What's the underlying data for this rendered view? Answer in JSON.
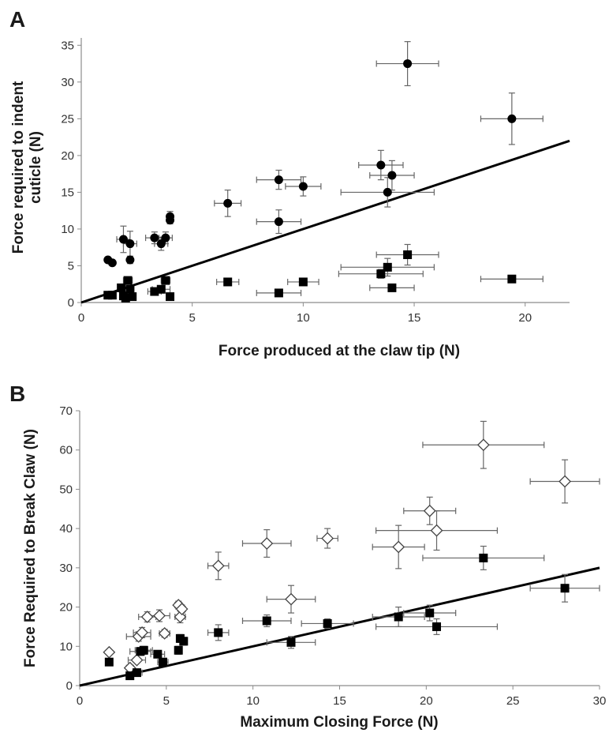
{
  "panels": [
    {
      "letter": "A",
      "xlabel": "Force produced at the claw tip (N)",
      "ylabel_lines": [
        "Force required to indent",
        "cuticle (N)"
      ],
      "xticks": [
        "0",
        "5",
        "10",
        "15",
        "20"
      ],
      "yticks": [
        "0",
        "5",
        "10",
        "15",
        "20",
        "25",
        "30",
        "35"
      ]
    },
    {
      "letter": "B",
      "xlabel": "Maximum Closing Force (N)",
      "ylabel_lines": [
        "Force Required to Break Claw (N)"
      ],
      "xticks": [
        "0",
        "5",
        "10",
        "15",
        "20",
        "25",
        "30"
      ],
      "yticks": [
        "0",
        "10",
        "20",
        "30",
        "40",
        "50",
        "60",
        "70"
      ]
    }
  ],
  "colors": {
    "marker": "#000000",
    "errorbar": "#666666",
    "axis": "#8c8c8c",
    "line": "#000000"
  },
  "chart_data": [
    {
      "type": "scatter",
      "xlabel": "Force produced at the claw tip (N)",
      "ylabel": "Force required to indent cuticle (N)",
      "xlim": [
        0,
        22
      ],
      "ylim": [
        0,
        36
      ],
      "grid": false,
      "series": [
        {
          "marker": "circle",
          "points": [
            {
              "x": 1.2,
              "y": 5.8,
              "xerr": 0.1,
              "yerr": 0.3
            },
            {
              "x": 1.4,
              "y": 5.4,
              "xerr": 0.1,
              "yerr": 0.3
            },
            {
              "x": 1.9,
              "y": 8.6,
              "xerr": 0.3,
              "yerr": 1.8
            },
            {
              "x": 2.2,
              "y": 8.0,
              "xerr": 0.3,
              "yerr": 1.7
            },
            {
              "x": 2.2,
              "y": 5.8,
              "xerr": 0.1,
              "yerr": 0.5
            },
            {
              "x": 3.3,
              "y": 8.8,
              "xerr": 0.4,
              "yerr": 0.8
            },
            {
              "x": 3.6,
              "y": 8.0,
              "xerr": 0.3,
              "yerr": 0.9
            },
            {
              "x": 3.8,
              "y": 8.8,
              "xerr": 0.3,
              "yerr": 0.8
            },
            {
              "x": 4.0,
              "y": 11.7,
              "xerr": 0.1,
              "yerr": 0.7
            },
            {
              "x": 4.0,
              "y": 11.2,
              "xerr": 0.1,
              "yerr": 0.5
            },
            {
              "x": 6.6,
              "y": 13.5,
              "xerr": 0.6,
              "yerr": 1.8
            },
            {
              "x": 8.9,
              "y": 16.7,
              "xerr": 1.0,
              "yerr": 1.3
            },
            {
              "x": 8.9,
              "y": 11.0,
              "xerr": 1.0,
              "yerr": 1.6
            },
            {
              "x": 10.0,
              "y": 15.8,
              "xerr": 0.8,
              "yerr": 1.3
            },
            {
              "x": 13.5,
              "y": 18.7,
              "xerr": 1.0,
              "yerr": 2.0
            },
            {
              "x": 13.8,
              "y": 15.0,
              "xerr": 2.1,
              "yerr": 2.0
            },
            {
              "x": 14.0,
              "y": 17.3,
              "xerr": 1.0,
              "yerr": 2.0
            },
            {
              "x": 14.7,
              "y": 32.5,
              "xerr": 1.4,
              "yerr": 3.0
            },
            {
              "x": 19.4,
              "y": 25.0,
              "xerr": 1.4,
              "yerr": 3.5
            }
          ]
        },
        {
          "marker": "square",
          "points": [
            {
              "x": 1.2,
              "y": 1.0,
              "xerr": 0.1,
              "yerr": 0.1
            },
            {
              "x": 1.4,
              "y": 1.0,
              "xerr": 0.1,
              "yerr": 0.1
            },
            {
              "x": 1.8,
              "y": 2.0,
              "xerr": 0.1,
              "yerr": 0.2
            },
            {
              "x": 1.9,
              "y": 0.9,
              "xerr": 0.1,
              "yerr": 0.2
            },
            {
              "x": 2.0,
              "y": 0.6,
              "xerr": 0.1,
              "yerr": 0.2
            },
            {
              "x": 2.1,
              "y": 3.0,
              "xerr": 0.2,
              "yerr": 0.4
            },
            {
              "x": 2.2,
              "y": 1.8,
              "xerr": 0.1,
              "yerr": 0.3
            },
            {
              "x": 2.3,
              "y": 0.8,
              "xerr": 0.1,
              "yerr": 0.2
            },
            {
              "x": 3.3,
              "y": 1.5,
              "xerr": 0.3,
              "yerr": 0.2
            },
            {
              "x": 3.6,
              "y": 1.8,
              "xerr": 0.4,
              "yerr": 0.2
            },
            {
              "x": 3.8,
              "y": 3.0,
              "xerr": 0.2,
              "yerr": 0.4
            },
            {
              "x": 4.0,
              "y": 0.8,
              "xerr": 0.1,
              "yerr": 0.2
            },
            {
              "x": 6.6,
              "y": 2.8,
              "xerr": 0.5,
              "yerr": 0.5
            },
            {
              "x": 8.9,
              "y": 1.3,
              "xerr": 1.0,
              "yerr": 0.3
            },
            {
              "x": 10.0,
              "y": 2.8,
              "xerr": 0.7,
              "yerr": 0.4
            },
            {
              "x": 13.5,
              "y": 3.9,
              "xerr": 1.9,
              "yerr": 0.6
            },
            {
              "x": 13.8,
              "y": 4.8,
              "xerr": 2.1,
              "yerr": 1.2
            },
            {
              "x": 14.0,
              "y": 2.0,
              "xerr": 1.0,
              "yerr": 0.3
            },
            {
              "x": 14.7,
              "y": 6.5,
              "xerr": 1.4,
              "yerr": 1.4
            },
            {
              "x": 19.4,
              "y": 3.2,
              "xerr": 1.4,
              "yerr": 0.3
            }
          ]
        }
      ],
      "reference_line": {
        "x": [
          0,
          22
        ],
        "y": [
          0,
          22
        ]
      }
    },
    {
      "type": "scatter",
      "xlabel": "Maximum Closing Force (N)",
      "ylabel": "Force Required to Break Claw (N)",
      "xlim": [
        0,
        30
      ],
      "ylim": [
        0,
        70
      ],
      "grid": false,
      "series": [
        {
          "marker": "diamond-open",
          "points": [
            {
              "x": 1.7,
              "y": 8.5,
              "xerr": 0.1,
              "yerr": 0.5
            },
            {
              "x": 2.9,
              "y": 4.5,
              "xerr": 0.2,
              "yerr": 0.5
            },
            {
              "x": 3.3,
              "y": 6.5,
              "xerr": 0.5,
              "yerr": 0.5
            },
            {
              "x": 3.4,
              "y": 12.5,
              "xerr": 0.7,
              "yerr": 1.2
            },
            {
              "x": 3.6,
              "y": 13.5,
              "xerr": 0.5,
              "yerr": 1.3
            },
            {
              "x": 3.9,
              "y": 17.5,
              "xerr": 0.5,
              "yerr": 1.3
            },
            {
              "x": 4.6,
              "y": 17.8,
              "xerr": 0.6,
              "yerr": 1.5
            },
            {
              "x": 4.9,
              "y": 13.3,
              "xerr": 0.3,
              "yerr": 1.0
            },
            {
              "x": 5.7,
              "y": 20.5,
              "xerr": 0.2,
              "yerr": 1.0
            },
            {
              "x": 5.8,
              "y": 17.5,
              "xerr": 0.3,
              "yerr": 1.5
            },
            {
              "x": 5.9,
              "y": 19.5,
              "xerr": 0.2,
              "yerr": 1.0
            },
            {
              "x": 8.0,
              "y": 30.5,
              "xerr": 0.6,
              "yerr": 3.5
            },
            {
              "x": 10.8,
              "y": 36.2,
              "xerr": 1.4,
              "yerr": 3.5
            },
            {
              "x": 12.2,
              "y": 22.0,
              "xerr": 1.4,
              "yerr": 3.5
            },
            {
              "x": 14.3,
              "y": 37.5,
              "xerr": 0.6,
              "yerr": 2.5
            },
            {
              "x": 18.4,
              "y": 35.3,
              "xerr": 1.5,
              "yerr": 5.5
            },
            {
              "x": 20.2,
              "y": 44.5,
              "xerr": 1.5,
              "yerr": 3.5
            },
            {
              "x": 20.6,
              "y": 39.5,
              "xerr": 3.5,
              "yerr": 5.0
            },
            {
              "x": 23.3,
              "y": 61.3,
              "xerr": 3.5,
              "yerr": 6.0
            },
            {
              "x": 28.0,
              "y": 52.0,
              "xerr": 2.0,
              "yerr": 5.5
            }
          ]
        },
        {
          "marker": "square",
          "points": [
            {
              "x": 1.7,
              "y": 6.0,
              "xerr": 0.1,
              "yerr": 0.5
            },
            {
              "x": 2.9,
              "y": 2.5,
              "xerr": 0.2,
              "yerr": 0.5
            },
            {
              "x": 3.3,
              "y": 3.3,
              "xerr": 0.3,
              "yerr": 0.5
            },
            {
              "x": 3.5,
              "y": 8.7,
              "xerr": 0.6,
              "yerr": 1.0
            },
            {
              "x": 3.7,
              "y": 9.0,
              "xerr": 0.5,
              "yerr": 1.0
            },
            {
              "x": 4.5,
              "y": 8.0,
              "xerr": 0.4,
              "yerr": 0.8
            },
            {
              "x": 4.8,
              "y": 6.0,
              "xerr": 0.3,
              "yerr": 0.8
            },
            {
              "x": 5.7,
              "y": 9.0,
              "xerr": 0.2,
              "yerr": 1.0
            },
            {
              "x": 5.8,
              "y": 12.0,
              "xerr": 0.2,
              "yerr": 1.0
            },
            {
              "x": 6.0,
              "y": 11.3,
              "xerr": 0.2,
              "yerr": 1.0
            },
            {
              "x": 8.0,
              "y": 13.5,
              "xerr": 0.6,
              "yerr": 2.0
            },
            {
              "x": 10.8,
              "y": 16.5,
              "xerr": 1.4,
              "yerr": 1.5
            },
            {
              "x": 12.2,
              "y": 11.0,
              "xerr": 1.4,
              "yerr": 1.5
            },
            {
              "x": 14.3,
              "y": 15.8,
              "xerr": 1.5,
              "yerr": 1.2
            },
            {
              "x": 18.4,
              "y": 17.5,
              "xerr": 1.5,
              "yerr": 2.5
            },
            {
              "x": 20.2,
              "y": 18.5,
              "xerr": 1.5,
              "yerr": 2.0
            },
            {
              "x": 20.6,
              "y": 15.0,
              "xerr": 3.5,
              "yerr": 2.0
            },
            {
              "x": 23.3,
              "y": 32.5,
              "xerr": 3.5,
              "yerr": 3.0
            },
            {
              "x": 28.0,
              "y": 24.8,
              "xerr": 2.0,
              "yerr": 3.5
            }
          ]
        }
      ],
      "reference_line": {
        "x": [
          0,
          30
        ],
        "y": [
          0,
          30
        ]
      }
    }
  ]
}
